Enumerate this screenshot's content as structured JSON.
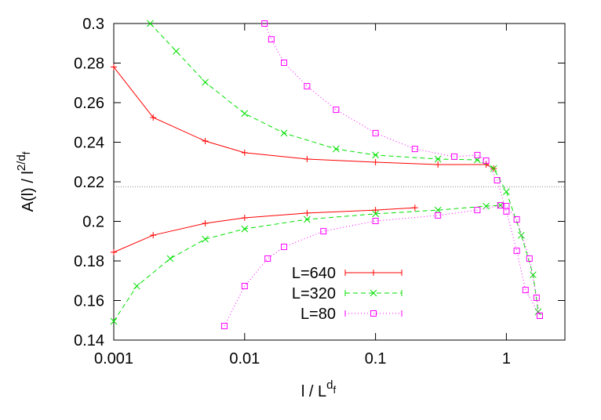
{
  "chart_data": {
    "type": "line",
    "xlabel": "l / L",
    "xlabel_sup": "d",
    "xlabel_sub": "f",
    "ylabel": "A(l) / l",
    "ylabel_sup": "2/d",
    "ylabel_sub": "f",
    "log_x": true,
    "xlim": [
      0.001,
      2.8
    ],
    "xticks": [
      0.001,
      0.01,
      0.1,
      1
    ],
    "ylim": [
      0.14,
      0.3
    ],
    "yticks": [
      0.14,
      0.16,
      0.18,
      0.2,
      0.22,
      0.24,
      0.26,
      0.28,
      0.3
    ],
    "hline": 0.2175,
    "legend": "bottom-center",
    "series": [
      {
        "name": "L=640",
        "color": "#ff0000",
        "dash": "solid",
        "marker": "plus",
        "x": [
          0.001,
          0.002,
          0.005,
          0.01,
          0.03,
          0.1,
          0.3,
          0.7,
          0.8,
          null,
          0.001,
          0.002,
          0.005,
          0.01,
          0.03,
          0.1,
          0.2
        ],
        "values": [
          0.278,
          0.2525,
          0.2406,
          0.2347,
          0.2315,
          0.2299,
          0.2287,
          0.2287,
          0.2267,
          null,
          0.1844,
          0.193,
          0.199,
          0.2018,
          0.2042,
          0.2057,
          0.2069
        ]
      },
      {
        "name": "L=320",
        "color": "#00e000",
        "dash": "dashed",
        "marker": "cross",
        "x": [
          0.0019,
          0.003,
          0.005,
          0.01,
          0.02,
          0.05,
          0.1,
          0.3,
          0.6,
          0.8,
          1.0,
          1.3,
          1.6,
          1.75,
          null,
          0.001,
          0.0015,
          0.0027,
          0.005,
          0.01,
          0.03,
          0.1,
          0.3,
          0.7,
          0.9
        ],
        "values": [
          0.3,
          0.286,
          0.2703,
          0.2545,
          0.2446,
          0.2366,
          0.2335,
          0.2315,
          0.2311,
          0.2267,
          0.215,
          0.193,
          0.173,
          0.1543,
          null,
          0.1495,
          0.1673,
          0.1812,
          0.191,
          0.1962,
          0.201,
          0.2038,
          0.2057,
          0.2077,
          0.2081
        ]
      },
      {
        "name": "L=80",
        "color": "#ff00ff",
        "dash": "dotted",
        "marker": "square",
        "x": [
          0.0142,
          0.016,
          0.02,
          0.03,
          0.05,
          0.1,
          0.2,
          0.4,
          0.6,
          0.7,
          0.85,
          1.0,
          1.2,
          1.4,
          1.8,
          null,
          0.007,
          0.01,
          0.015,
          0.02,
          0.04,
          0.1,
          0.3,
          0.6,
          0.9,
          1.0,
          1.2,
          1.5,
          1.7,
          1.8
        ],
        "values": [
          0.3,
          0.292,
          0.2802,
          0.2683,
          0.2564,
          0.2446,
          0.2366,
          0.2327,
          0.2335,
          0.2307,
          0.2208,
          0.205,
          0.1851,
          0.1653,
          0.1523,
          null,
          0.1471,
          0.1673,
          0.1812,
          0.1871,
          0.195,
          0.2002,
          0.203,
          0.2057,
          0.2081,
          0.2077,
          0.201,
          0.1812,
          0.1614,
          0.1523
        ]
      }
    ]
  }
}
